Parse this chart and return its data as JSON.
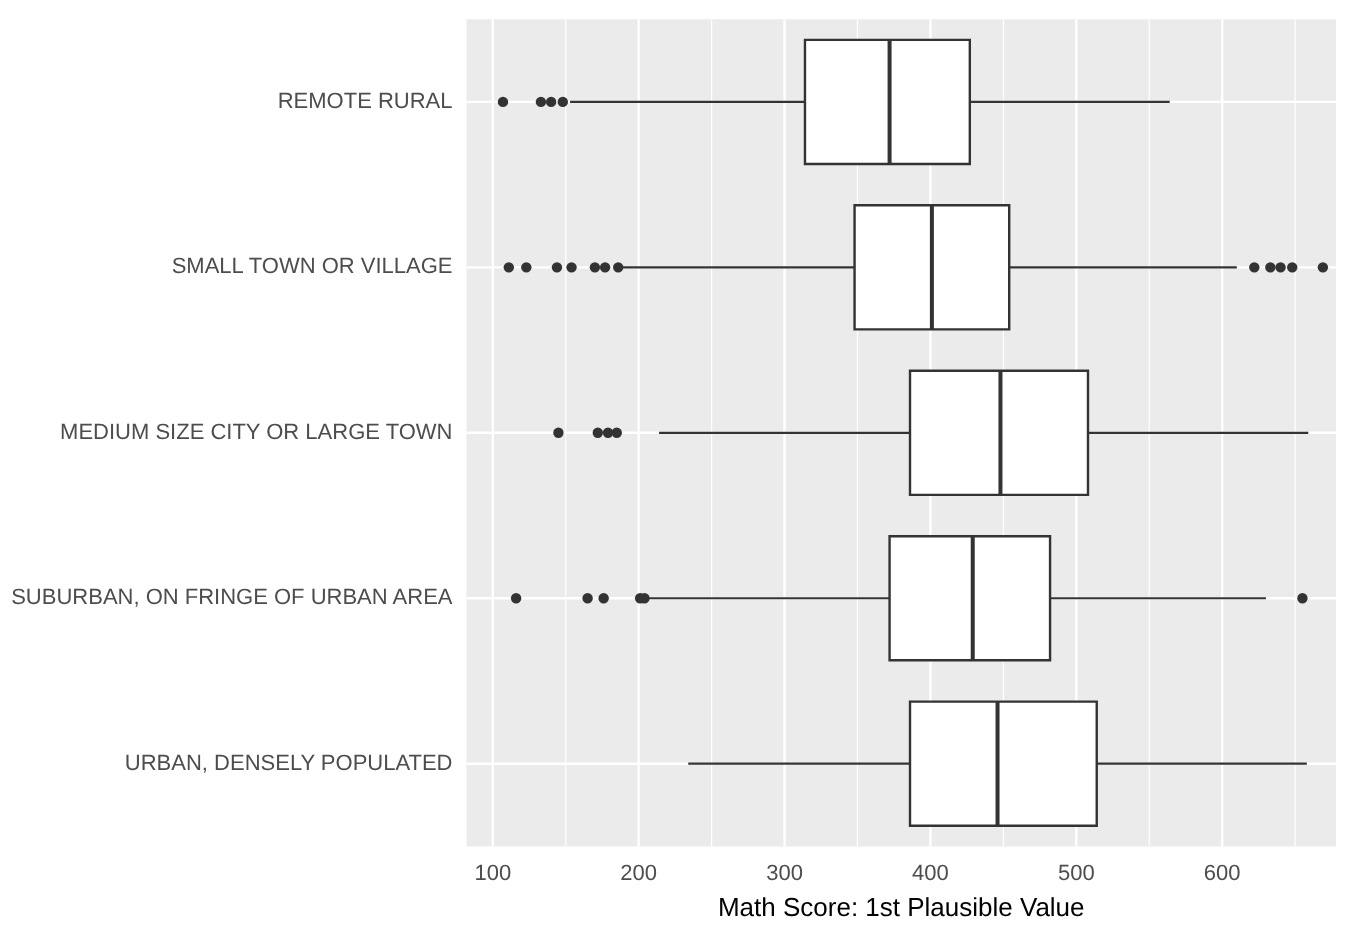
{
  "chart_data": {
    "type": "box",
    "orientation": "horizontal",
    "xlabel": "Math Score: 1st Plausible Value",
    "categories": [
      "REMOTE RURAL",
      "SMALL TOWN OR VILLAGE",
      "MEDIUM SIZE CITY OR LARGE TOWN",
      "SUBURBAN, ON FRINGE OF URBAN AREA",
      "URBAN, DENSELY POPULATED"
    ],
    "boxes": [
      {
        "low": 153,
        "q1": 314,
        "median": 372,
        "q3": 427,
        "high": 564,
        "outliers": [
          107,
          133,
          140,
          148
        ]
      },
      {
        "low": 189,
        "q1": 348,
        "median": 401,
        "q3": 454,
        "high": 610,
        "outliers": [
          111,
          123,
          144,
          154,
          170,
          177,
          186,
          622,
          633,
          640,
          648,
          669
        ]
      },
      {
        "low": 214,
        "q1": 386,
        "median": 448,
        "q3": 508,
        "high": 659,
        "outliers": [
          145,
          172,
          179,
          185
        ]
      },
      {
        "low": 207,
        "q1": 372,
        "median": 429,
        "q3": 482,
        "high": 630,
        "outliers": [
          116,
          165,
          176,
          201,
          204,
          655
        ]
      },
      {
        "low": 234,
        "q1": 386,
        "median": 446,
        "q3": 514,
        "high": 658
      }
    ],
    "color": "#ffffff",
    "xlim": [
      82,
      678
    ],
    "xticks": [
      100,
      200,
      300,
      400,
      500,
      600
    ],
    "grid": true,
    "legend": false
  }
}
